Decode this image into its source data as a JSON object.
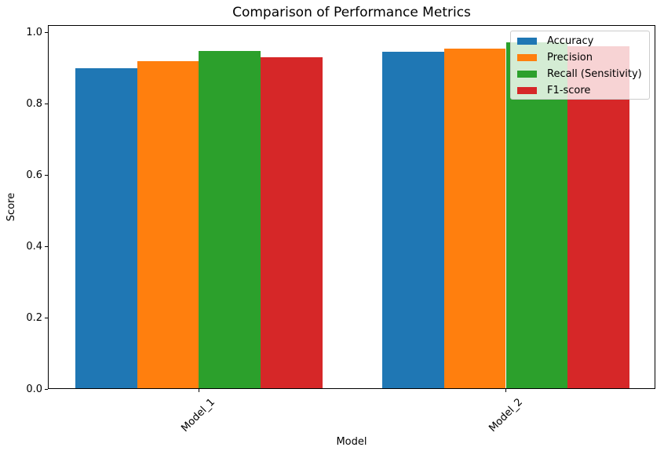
{
  "chart_data": {
    "type": "bar",
    "title": "Comparison of Performance Metrics",
    "xlabel": "Model",
    "ylabel": "Score",
    "categories": [
      "Model_1",
      "Model_2"
    ],
    "series": [
      {
        "name": "Accuracy",
        "color": "#1f77b4",
        "values": [
          0.9,
          0.944
        ]
      },
      {
        "name": "Precision",
        "color": "#ff7f0e",
        "values": [
          0.918,
          0.954
        ]
      },
      {
        "name": "Recall (Sensitivity)",
        "color": "#2ca02c",
        "values": [
          0.947,
          0.971
        ]
      },
      {
        "name": "F1-score",
        "color": "#d62728",
        "values": [
          0.93,
          0.961
        ]
      }
    ],
    "yticks": [
      {
        "value": 0.0,
        "label": "0.0"
      },
      {
        "value": 0.2,
        "label": "0.2"
      },
      {
        "value": 0.4,
        "label": "0.4"
      },
      {
        "value": 0.6,
        "label": "0.6"
      },
      {
        "value": 0.8,
        "label": "0.8"
      },
      {
        "value": 1.0,
        "label": "1.0"
      }
    ],
    "ylim": [
      0.0,
      1.02
    ],
    "grid": false,
    "legend_position": "upper right",
    "xtick_rotation_deg": 45
  }
}
